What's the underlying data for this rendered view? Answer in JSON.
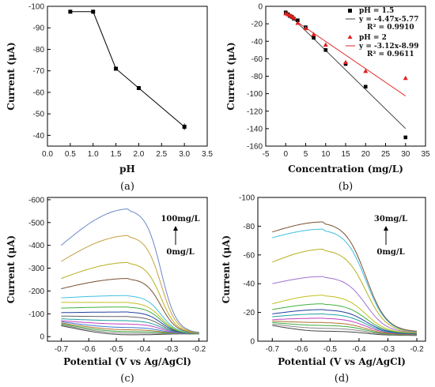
{
  "chart_data": [
    {
      "type": "line",
      "panel_label": "(a)",
      "xlabel": "pH",
      "ylabel": "Current (μA)",
      "xlim": [
        0.0,
        3.5
      ],
      "ylim": [
        -35,
        -100
      ],
      "xticks": [
        0.0,
        0.5,
        1.0,
        1.5,
        2.0,
        2.5,
        3.0,
        3.5
      ],
      "xtick_labels": [
        "0.0",
        "0.5",
        "1.0",
        "1.5",
        "2.0",
        "2.5",
        "3.0",
        "3.5"
      ],
      "yticks": [
        -40,
        -50,
        -60,
        -70,
        -80,
        -90,
        -100
      ],
      "ytick_labels": [
        "-40",
        "-50",
        "-60",
        "-70",
        "-80",
        "-90",
        "-100"
      ],
      "series": [
        {
          "x": [
            0.5,
            1.0,
            1.5,
            2.0,
            3.0
          ],
          "y": [
            -97.5,
            -97.5,
            -71,
            -62,
            -44
          ],
          "color": "#000000"
        }
      ]
    },
    {
      "type": "scatter",
      "panel_label": "(b)",
      "xlabel": "Concentration (mg/L)",
      "ylabel": "Current (μA)",
      "xlim": [
        -5,
        35
      ],
      "ylim": [
        -160,
        0
      ],
      "xticks": [
        -5,
        0,
        5,
        10,
        15,
        20,
        25,
        30,
        35
      ],
      "xtick_labels": [
        "-5",
        "0",
        "5",
        "10",
        "15",
        "20",
        "25",
        "30",
        "35"
      ],
      "yticks": [
        0,
        -20,
        -40,
        -60,
        -80,
        -100,
        -120,
        -140,
        -160
      ],
      "ytick_labels": [
        "0",
        "-20",
        "-40",
        "-60",
        "-80",
        "-100",
        "-120",
        "-140",
        "-160"
      ],
      "legend": [
        {
          "label": "pH = 1.5",
          "eq": "y   = -4.47x-5.77",
          "r2": "R² = 0.9910"
        },
        {
          "label": "pH = 2",
          "eq": "y   = -3.12x-8.99",
          "r2": "R² = 0.9611"
        }
      ],
      "series": [
        {
          "x": [
            0,
            0.5,
            1,
            1.5,
            2,
            3,
            5,
            7,
            10,
            15,
            20,
            30
          ],
          "y": [
            -7,
            -9,
            -11,
            -12,
            -14,
            -16,
            -24,
            -36,
            -50,
            -66,
            -92,
            -150
          ],
          "color": "#000000",
          "marker": "square",
          "fit": [
            -4.47,
            -5.77
          ]
        },
        {
          "x": [
            0,
            0.5,
            1,
            1.5,
            2,
            3,
            5,
            7,
            10,
            15,
            20,
            30
          ],
          "y": [
            -8,
            -9,
            -10,
            -11,
            -13,
            -19,
            -25,
            -32,
            -44,
            -64,
            -74,
            -82
          ],
          "color": "#e02020",
          "marker": "triangle",
          "fit": [
            -3.12,
            -8.99
          ]
        }
      ]
    },
    {
      "type": "line",
      "panel_label": "(c)",
      "xlabel": "Potential (V vs Ag/AgCl)",
      "ylabel": "Current (μA)",
      "xlim": [
        -0.75,
        -0.17
      ],
      "ylim": [
        20,
        -610
      ],
      "xticks": [
        -0.7,
        -0.6,
        -0.5,
        -0.4,
        -0.3,
        -0.2
      ],
      "xtick_labels": [
        "-0.7",
        "-0.6",
        "-0.5",
        "-0.4",
        "-0.3",
        "-0.2"
      ],
      "yticks": [
        0,
        -100,
        -200,
        -300,
        -400,
        -500,
        -600
      ],
      "ytick_labels": [
        "0",
        "-100",
        "-200",
        "-300",
        "-400",
        "-500",
        "-600"
      ],
      "annotation_top": "100mg/L",
      "annotation_bottom": "0mg/L",
      "curves": [
        {
          "start": -48,
          "peak": -8,
          "color": "#444444"
        },
        {
          "start": -52,
          "peak": -15,
          "color": "#888888"
        },
        {
          "start": -56,
          "peak": -22,
          "color": "#3aaa3a"
        },
        {
          "start": -60,
          "peak": -30,
          "color": "#b07030"
        },
        {
          "start": -65,
          "peak": -40,
          "color": "#3a7ad0"
        },
        {
          "start": -70,
          "peak": -55,
          "color": "#c040c0"
        },
        {
          "start": -78,
          "peak": -70,
          "color": "#20a0a0"
        },
        {
          "start": -90,
          "peak": -88,
          "color": "#606060"
        },
        {
          "start": -105,
          "peak": -108,
          "color": "#2040a0"
        },
        {
          "start": -125,
          "peak": -130,
          "color": "#40b040"
        },
        {
          "start": -150,
          "peak": -150,
          "color": "#c0c020"
        },
        {
          "start": -170,
          "peak": -180,
          "color": "#40c0e0"
        },
        {
          "start": -210,
          "peak": -255,
          "color": "#7a5030"
        },
        {
          "start": -255,
          "peak": -325,
          "color": "#b8b020"
        },
        {
          "start": -330,
          "peak": -443,
          "color": "#c8a040"
        },
        {
          "start": -400,
          "peak": -560,
          "color": "#6a88c8"
        }
      ]
    },
    {
      "type": "line",
      "panel_label": "(d)",
      "xlabel": "Potential (V vs Ag/AgCl)",
      "ylabel": "Current (μA)",
      "xlim": [
        -0.75,
        -0.17
      ],
      "ylim": [
        0,
        -100
      ],
      "xticks": [
        -0.7,
        -0.6,
        -0.5,
        -0.4,
        -0.3,
        -0.2
      ],
      "xtick_labels": [
        "-0.7",
        "-0.6",
        "-0.5",
        "-0.4",
        "-0.3",
        "-0.2"
      ],
      "yticks": [
        0,
        -20,
        -40,
        -60,
        -80,
        -100
      ],
      "ytick_labels": [
        "0",
        "-20",
        "-40",
        "-60",
        "-80",
        "-100"
      ],
      "annotation_top": "30mg/L",
      "annotation_bottom": "0mg/L",
      "curves": [
        {
          "start": -11,
          "peak": -7,
          "color": "#444444"
        },
        {
          "start": -12,
          "peak": -9,
          "color": "#888888"
        },
        {
          "start": -13,
          "peak": -11,
          "color": "#3aaa3a"
        },
        {
          "start": -14,
          "peak": -13,
          "color": "#b07030"
        },
        {
          "start": -15,
          "peak": -16,
          "color": "#c040c0"
        },
        {
          "start": -17,
          "peak": -19,
          "color": "#20a0a0"
        },
        {
          "start": -19,
          "peak": -22,
          "color": "#2040a0"
        },
        {
          "start": -22,
          "peak": -26,
          "color": "#40b040"
        },
        {
          "start": -26,
          "peak": -32,
          "color": "#c0c020"
        },
        {
          "start": -40,
          "peak": -45,
          "color": "#a070d0"
        },
        {
          "start": -55,
          "peak": -64,
          "color": "#b8b020"
        },
        {
          "start": -72,
          "peak": -78,
          "color": "#40c0e0"
        },
        {
          "start": -76,
          "peak": -83,
          "color": "#7a5030"
        }
      ]
    }
  ]
}
